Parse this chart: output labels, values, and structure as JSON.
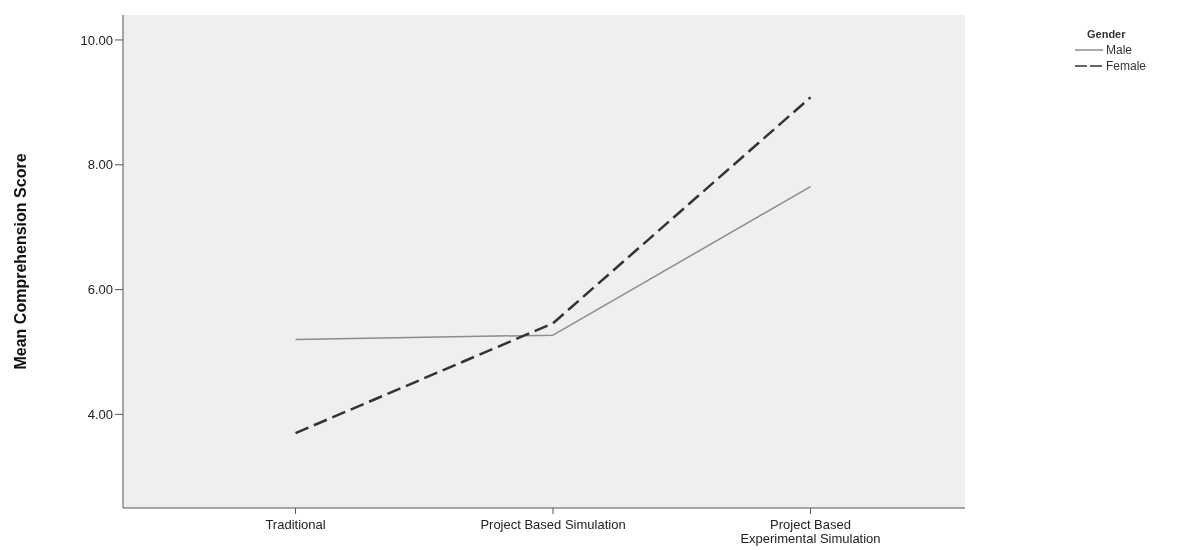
{
  "chart_data": {
    "type": "line",
    "ylabel": "Mean Comprehension Score",
    "legend_title": "Gender",
    "categories": [
      "Traditional",
      "Project Based Simulation",
      "Project Based Experimental Simulation"
    ],
    "series": [
      {
        "name": "Male",
        "color": "#8c8c8c",
        "line_style": "solid",
        "values": [
          5.2,
          5.27,
          7.65
        ]
      },
      {
        "name": "Female",
        "color": "#333333",
        "line_style": "dashed",
        "values": [
          3.7,
          5.46,
          9.08
        ]
      }
    ],
    "ylim": [
      2.5,
      10.4
    ],
    "yticks": [
      {
        "value": 4,
        "label": "4.00"
      },
      {
        "value": 6,
        "label": "6.00"
      },
      {
        "value": 8,
        "label": "8.00"
      },
      {
        "value": 10,
        "label": "10.00"
      }
    ],
    "grid": false,
    "legend": "top right",
    "marker": "none"
  }
}
